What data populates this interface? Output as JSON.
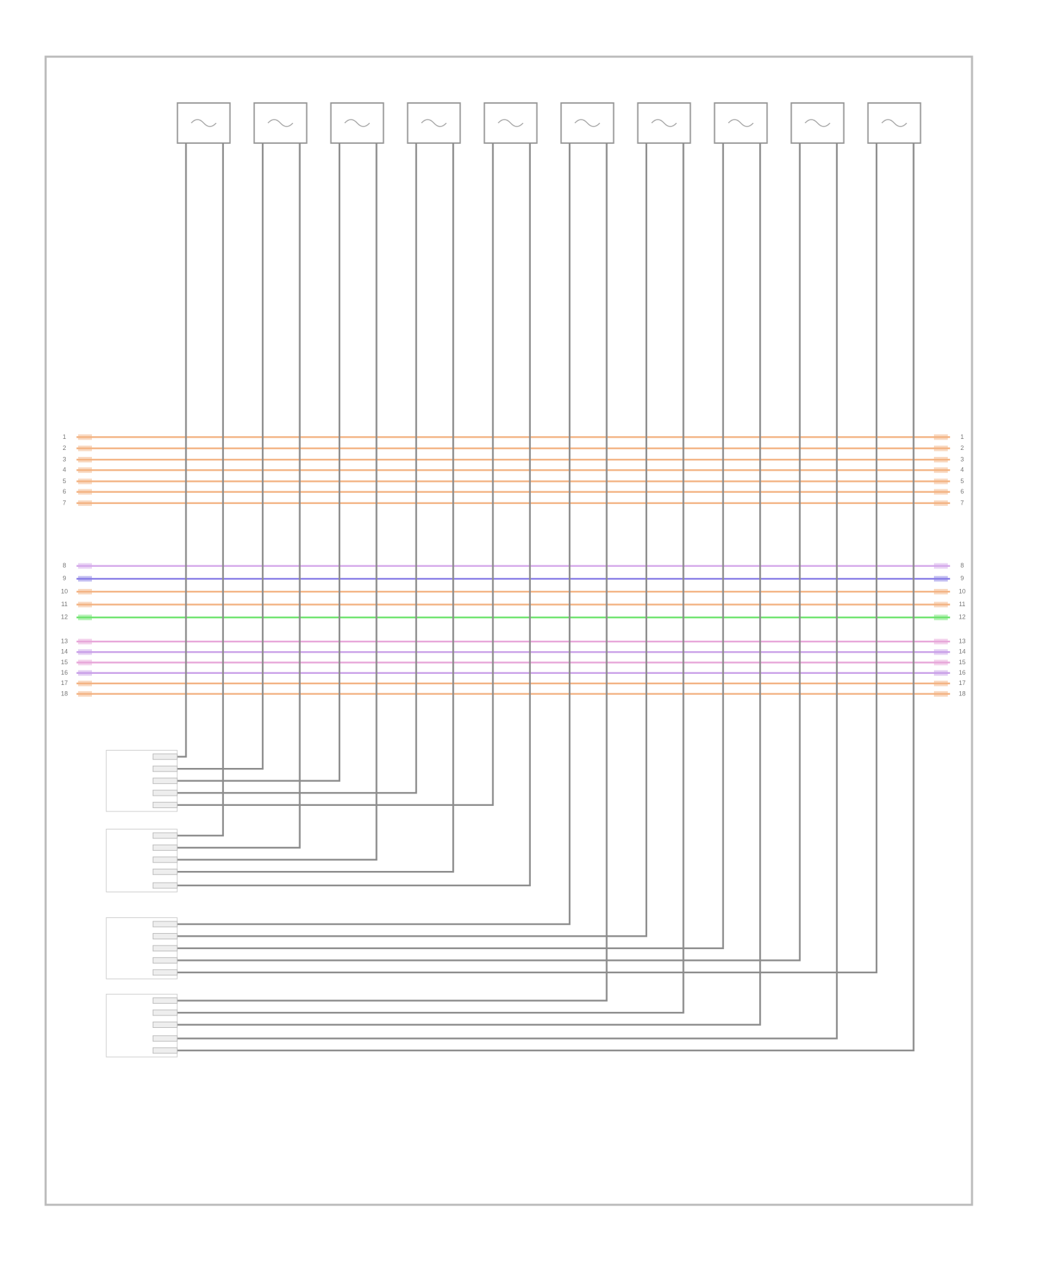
{
  "bus_lines": [
    {
      "pin": "1",
      "color": "#f3b383"
    },
    {
      "pin": "2",
      "color": "#f3b383"
    },
    {
      "pin": "3",
      "color": "#f3b383"
    },
    {
      "pin": "4",
      "color": "#f3b383"
    },
    {
      "pin": "5",
      "color": "#f3b383"
    },
    {
      "pin": "6",
      "color": "#f3b383"
    },
    {
      "pin": "7",
      "color": "#f3b383"
    },
    {
      "pin": "8",
      "color": "#d4a8ea"
    },
    {
      "pin": "9",
      "color": "#8a7fe6"
    },
    {
      "pin": "10",
      "color": "#f3b383"
    },
    {
      "pin": "11",
      "color": "#f3b383"
    },
    {
      "pin": "12",
      "color": "#6ee46e"
    },
    {
      "pin": "13",
      "color": "#e7a6d9"
    },
    {
      "pin": "14",
      "color": "#c9a0e8"
    },
    {
      "pin": "15",
      "color": "#e7a6d9"
    },
    {
      "pin": "16",
      "color": "#c9a0e8"
    },
    {
      "pin": "17",
      "color": "#f3b383"
    },
    {
      "pin": "18",
      "color": "#f3b383"
    }
  ]
}
